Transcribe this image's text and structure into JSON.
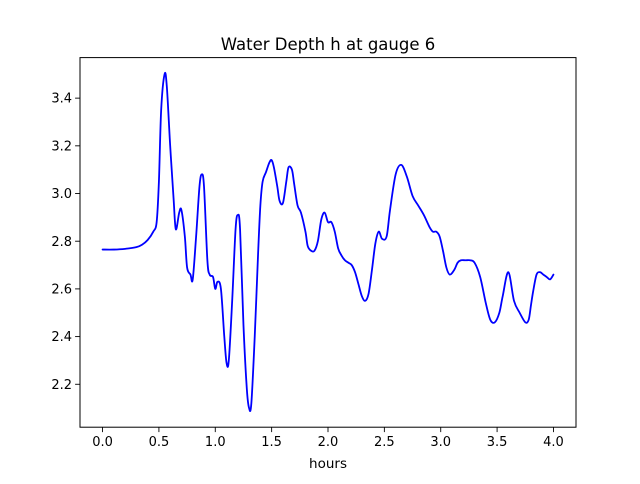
{
  "chart_data": {
    "type": "line",
    "title": "Water Depth h at gauge 6",
    "xlabel": "hours",
    "ylabel": "",
    "xlim": [
      -0.2,
      4.2
    ],
    "ylim": [
      2.02,
      3.57
    ],
    "xticks": [
      0.0,
      0.5,
      1.0,
      1.5,
      2.0,
      2.5,
      3.0,
      3.5,
      4.0
    ],
    "xtick_labels": [
      "0.0",
      "0.5",
      "1.0",
      "1.5",
      "2.0",
      "2.5",
      "3.0",
      "3.5",
      "4.0"
    ],
    "yticks": [
      2.2,
      2.4,
      2.6,
      2.8,
      3.0,
      3.2,
      3.4
    ],
    "ytick_labels": [
      "2.2",
      "2.4",
      "2.6",
      "2.8",
      "3.0",
      "3.2",
      "3.4"
    ],
    "grid": false,
    "series": [
      {
        "color": "#0000ff",
        "x": [
          0.0,
          0.1,
          0.2,
          0.3,
          0.35,
          0.4,
          0.45,
          0.48,
          0.5,
          0.52,
          0.55,
          0.57,
          0.6,
          0.63,
          0.65,
          0.68,
          0.7,
          0.73,
          0.75,
          0.78,
          0.8,
          0.83,
          0.86,
          0.88,
          0.9,
          0.93,
          0.95,
          0.98,
          1.0,
          1.02,
          1.05,
          1.08,
          1.1,
          1.12,
          1.15,
          1.18,
          1.2,
          1.22,
          1.25,
          1.28,
          1.3,
          1.32,
          1.35,
          1.38,
          1.4,
          1.42,
          1.45,
          1.48,
          1.5,
          1.52,
          1.55,
          1.57,
          1.6,
          1.63,
          1.65,
          1.68,
          1.7,
          1.73,
          1.76,
          1.8,
          1.82,
          1.85,
          1.88,
          1.91,
          1.94,
          1.97,
          2.0,
          2.03,
          2.06,
          2.09,
          2.12,
          2.15,
          2.18,
          2.21,
          2.24,
          2.27,
          2.3,
          2.33,
          2.36,
          2.39,
          2.42,
          2.45,
          2.48,
          2.52,
          2.55,
          2.6,
          2.65,
          2.7,
          2.75,
          2.8,
          2.85,
          2.9,
          2.93,
          2.96,
          2.99,
          3.02,
          3.05,
          3.08,
          3.12,
          3.15,
          3.18,
          3.22,
          3.26,
          3.3,
          3.35,
          3.4,
          3.44,
          3.48,
          3.52,
          3.55,
          3.6,
          3.65,
          3.7,
          3.75,
          3.78,
          3.8,
          3.82,
          3.85,
          3.88,
          3.91,
          3.94,
          3.97,
          4.0
        ],
        "y": [
          2.765,
          2.765,
          2.768,
          2.775,
          2.785,
          2.805,
          2.84,
          2.88,
          3.05,
          3.35,
          3.5,
          3.45,
          3.2,
          2.98,
          2.85,
          2.92,
          2.93,
          2.82,
          2.69,
          2.66,
          2.64,
          2.82,
          3.03,
          3.08,
          3.03,
          2.72,
          2.66,
          2.65,
          2.6,
          2.63,
          2.6,
          2.4,
          2.29,
          2.3,
          2.55,
          2.85,
          2.91,
          2.85,
          2.45,
          2.18,
          2.1,
          2.12,
          2.4,
          2.75,
          2.95,
          3.05,
          3.09,
          3.13,
          3.14,
          3.11,
          3.03,
          2.97,
          2.96,
          3.05,
          3.11,
          3.1,
          3.04,
          2.95,
          2.92,
          2.84,
          2.78,
          2.76,
          2.76,
          2.8,
          2.89,
          2.92,
          2.88,
          2.88,
          2.84,
          2.77,
          2.74,
          2.72,
          2.71,
          2.7,
          2.67,
          2.62,
          2.57,
          2.55,
          2.58,
          2.68,
          2.79,
          2.84,
          2.81,
          2.82,
          2.93,
          3.08,
          3.12,
          3.07,
          2.99,
          2.95,
          2.91,
          2.86,
          2.84,
          2.84,
          2.82,
          2.76,
          2.69,
          2.66,
          2.68,
          2.71,
          2.72,
          2.72,
          2.72,
          2.71,
          2.65,
          2.54,
          2.47,
          2.46,
          2.5,
          2.57,
          2.67,
          2.55,
          2.5,
          2.46,
          2.47,
          2.53,
          2.59,
          2.66,
          2.67,
          2.66,
          2.65,
          2.64,
          2.66
        ]
      }
    ]
  }
}
